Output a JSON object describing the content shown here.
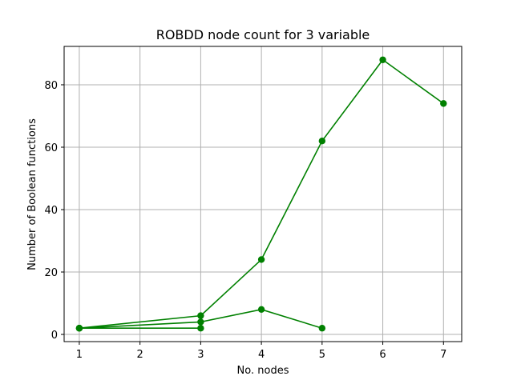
{
  "chart_data": {
    "type": "line",
    "title": "ROBDD node count for 3 variable",
    "xlabel": "No. nodes",
    "ylabel": "Number of Boolean functions",
    "xlim": [
      0.75,
      7.3
    ],
    "ylim": [
      -2.3,
      92.3
    ],
    "xticks": [
      1,
      2,
      3,
      4,
      5,
      6,
      7
    ],
    "yticks": [
      0,
      20,
      40,
      60,
      80
    ],
    "grid": true,
    "color": "#008000",
    "series": [
      {
        "x": [
          1,
          3,
          4,
          5,
          6,
          7
        ],
        "y": [
          2,
          6,
          24,
          62,
          88,
          74
        ]
      },
      {
        "x": [
          1,
          3,
          4,
          5
        ],
        "y": [
          2,
          4,
          8,
          2
        ]
      },
      {
        "x": [
          1,
          3
        ],
        "y": [
          2,
          2
        ]
      }
    ]
  }
}
